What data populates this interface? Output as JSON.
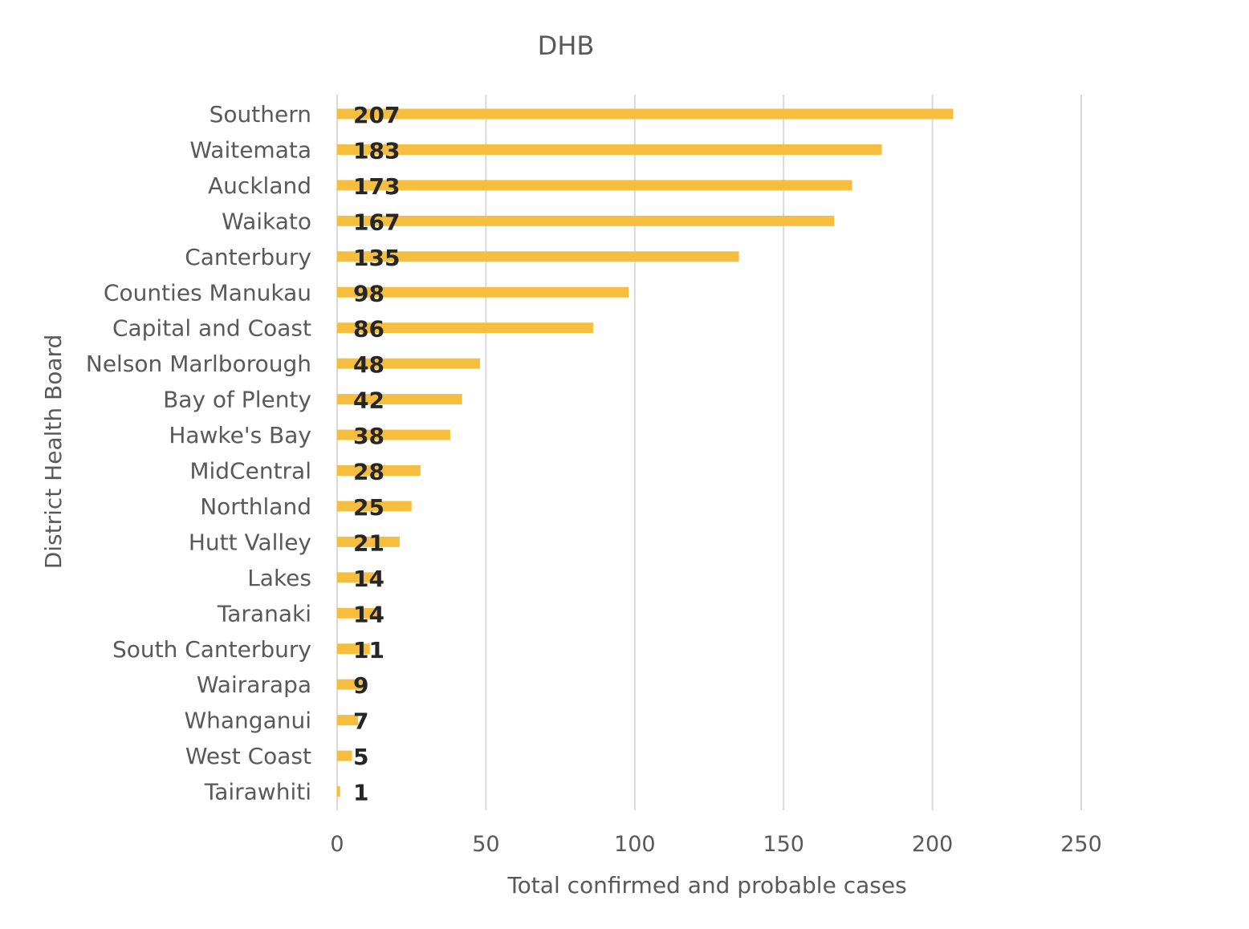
{
  "chart_data": {
    "type": "bar",
    "orientation": "horizontal",
    "title": "DHB",
    "xlabel": "Total confirmed and probable cases",
    "ylabel": "District Health Board",
    "xlim": [
      0,
      250
    ],
    "xticks": [
      0,
      50,
      100,
      150,
      200,
      250
    ],
    "grid": "vertical",
    "bar_color": "#f6be3f",
    "data_labels": true,
    "categories": [
      "Southern",
      "Waitemata",
      "Auckland",
      "Waikato",
      "Canterbury",
      "Counties Manukau",
      "Capital and Coast",
      "Nelson Marlborough",
      "Bay of Plenty",
      "Hawke's Bay",
      "MidCentral",
      "Northland",
      "Hutt Valley",
      "Lakes",
      "Taranaki",
      "South Canterbury",
      "Wairarapa",
      "Whanganui",
      "West Coast",
      "Tairawhiti"
    ],
    "values": [
      207,
      183,
      173,
      167,
      135,
      98,
      86,
      48,
      42,
      38,
      28,
      25,
      21,
      14,
      14,
      11,
      9,
      7,
      5,
      1
    ]
  }
}
